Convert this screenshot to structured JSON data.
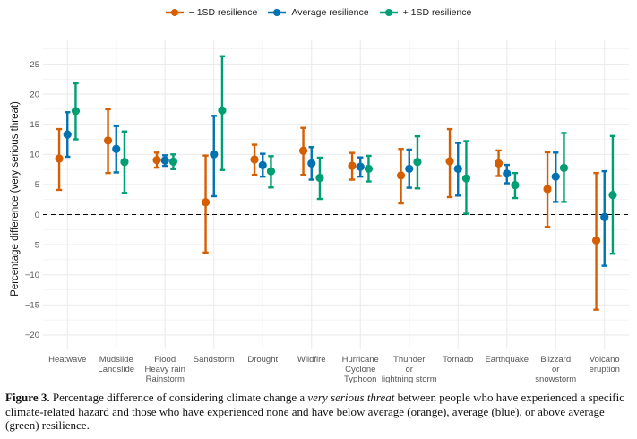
{
  "chart_data": {
    "type": "errorbar",
    "title": "",
    "xlabel": "",
    "ylabel": "Percentage difference (very serious threat)",
    "ylim": [
      -21.5,
      28.5
    ],
    "yticks": [
      -20,
      -15,
      -10,
      -5,
      0,
      5,
      10,
      15,
      20,
      25
    ],
    "reference_line": {
      "y": 0,
      "style": "dashed"
    },
    "grid": true,
    "legend_position": "top",
    "categories": [
      [
        "Heatwave"
      ],
      [
        "Mudslide",
        "Landslide"
      ],
      [
        "Flood",
        "Heavy rain",
        "Rainstorm"
      ],
      [
        "Sandstorm"
      ],
      [
        "Drought"
      ],
      [
        "Wildfire"
      ],
      [
        "Hurricane",
        "Cyclone",
        "Typhoon"
      ],
      [
        "Thunder",
        "or",
        "lightning storm"
      ],
      [
        "Tornado"
      ],
      [
        "Earthquake"
      ],
      [
        "Blizzard",
        "or",
        "snowstorm"
      ],
      [
        "Volcano",
        "eruption"
      ]
    ],
    "series": [
      {
        "name": "− 1SD resilience",
        "color": "#D55E00",
        "values": [
          9.3,
          12.3,
          9.05,
          2.05,
          9.15,
          10.6,
          8.1,
          6.5,
          8.85,
          8.5,
          4.25,
          -4.3
        ],
        "lower": [
          4.1,
          6.9,
          7.8,
          -6.3,
          6.6,
          6.6,
          5.8,
          1.85,
          2.9,
          6.4,
          -2.05,
          -15.8
        ],
        "upper": [
          14.2,
          17.5,
          10.3,
          9.8,
          11.6,
          14.4,
          10.25,
          10.9,
          14.2,
          10.65,
          10.35,
          6.9
        ]
      },
      {
        "name": "Average resilience",
        "color": "#0072B2",
        "values": [
          13.3,
          10.9,
          9.0,
          10.0,
          8.2,
          8.5,
          7.95,
          7.6,
          7.6,
          6.8,
          6.3,
          -0.4
        ],
        "lower": [
          9.6,
          7.0,
          8.1,
          3.05,
          6.3,
          5.8,
          6.3,
          4.45,
          3.15,
          5.2,
          2.1,
          -8.5
        ],
        "upper": [
          17.0,
          14.7,
          9.85,
          16.4,
          10.1,
          11.2,
          9.5,
          10.8,
          11.9,
          8.25,
          10.3,
          7.2
        ]
      },
      {
        "name": "+ 1SD resilience",
        "color": "#009E73",
        "values": [
          17.2,
          8.75,
          8.8,
          17.3,
          7.2,
          6.1,
          7.6,
          8.75,
          6.0,
          4.9,
          7.75,
          3.25
        ],
        "lower": [
          12.5,
          3.6,
          7.55,
          7.4,
          4.5,
          2.6,
          5.5,
          4.35,
          0.15,
          2.75,
          2.1,
          -6.5
        ],
        "upper": [
          21.8,
          13.8,
          10.0,
          26.3,
          9.7,
          9.45,
          9.75,
          13.0,
          12.2,
          6.9,
          13.55,
          13.05
        ]
      }
    ]
  },
  "legend": {
    "items": [
      {
        "label": "− 1SD resilience",
        "color": "#D55E00"
      },
      {
        "label": "Average resilience",
        "color": "#0072B2"
      },
      {
        "label": "+ 1SD resilience",
        "color": "#009E73"
      }
    ]
  },
  "caption": {
    "figure_label": "Figure 3.",
    "text_1": " Percentage difference of considering climate change a ",
    "emphasis": "very serious threat",
    "text_2": " between people who have experienced a specific climate-related hazard and those who have experienced none and have below average (orange), average (blue), or above average (green) resilience."
  }
}
